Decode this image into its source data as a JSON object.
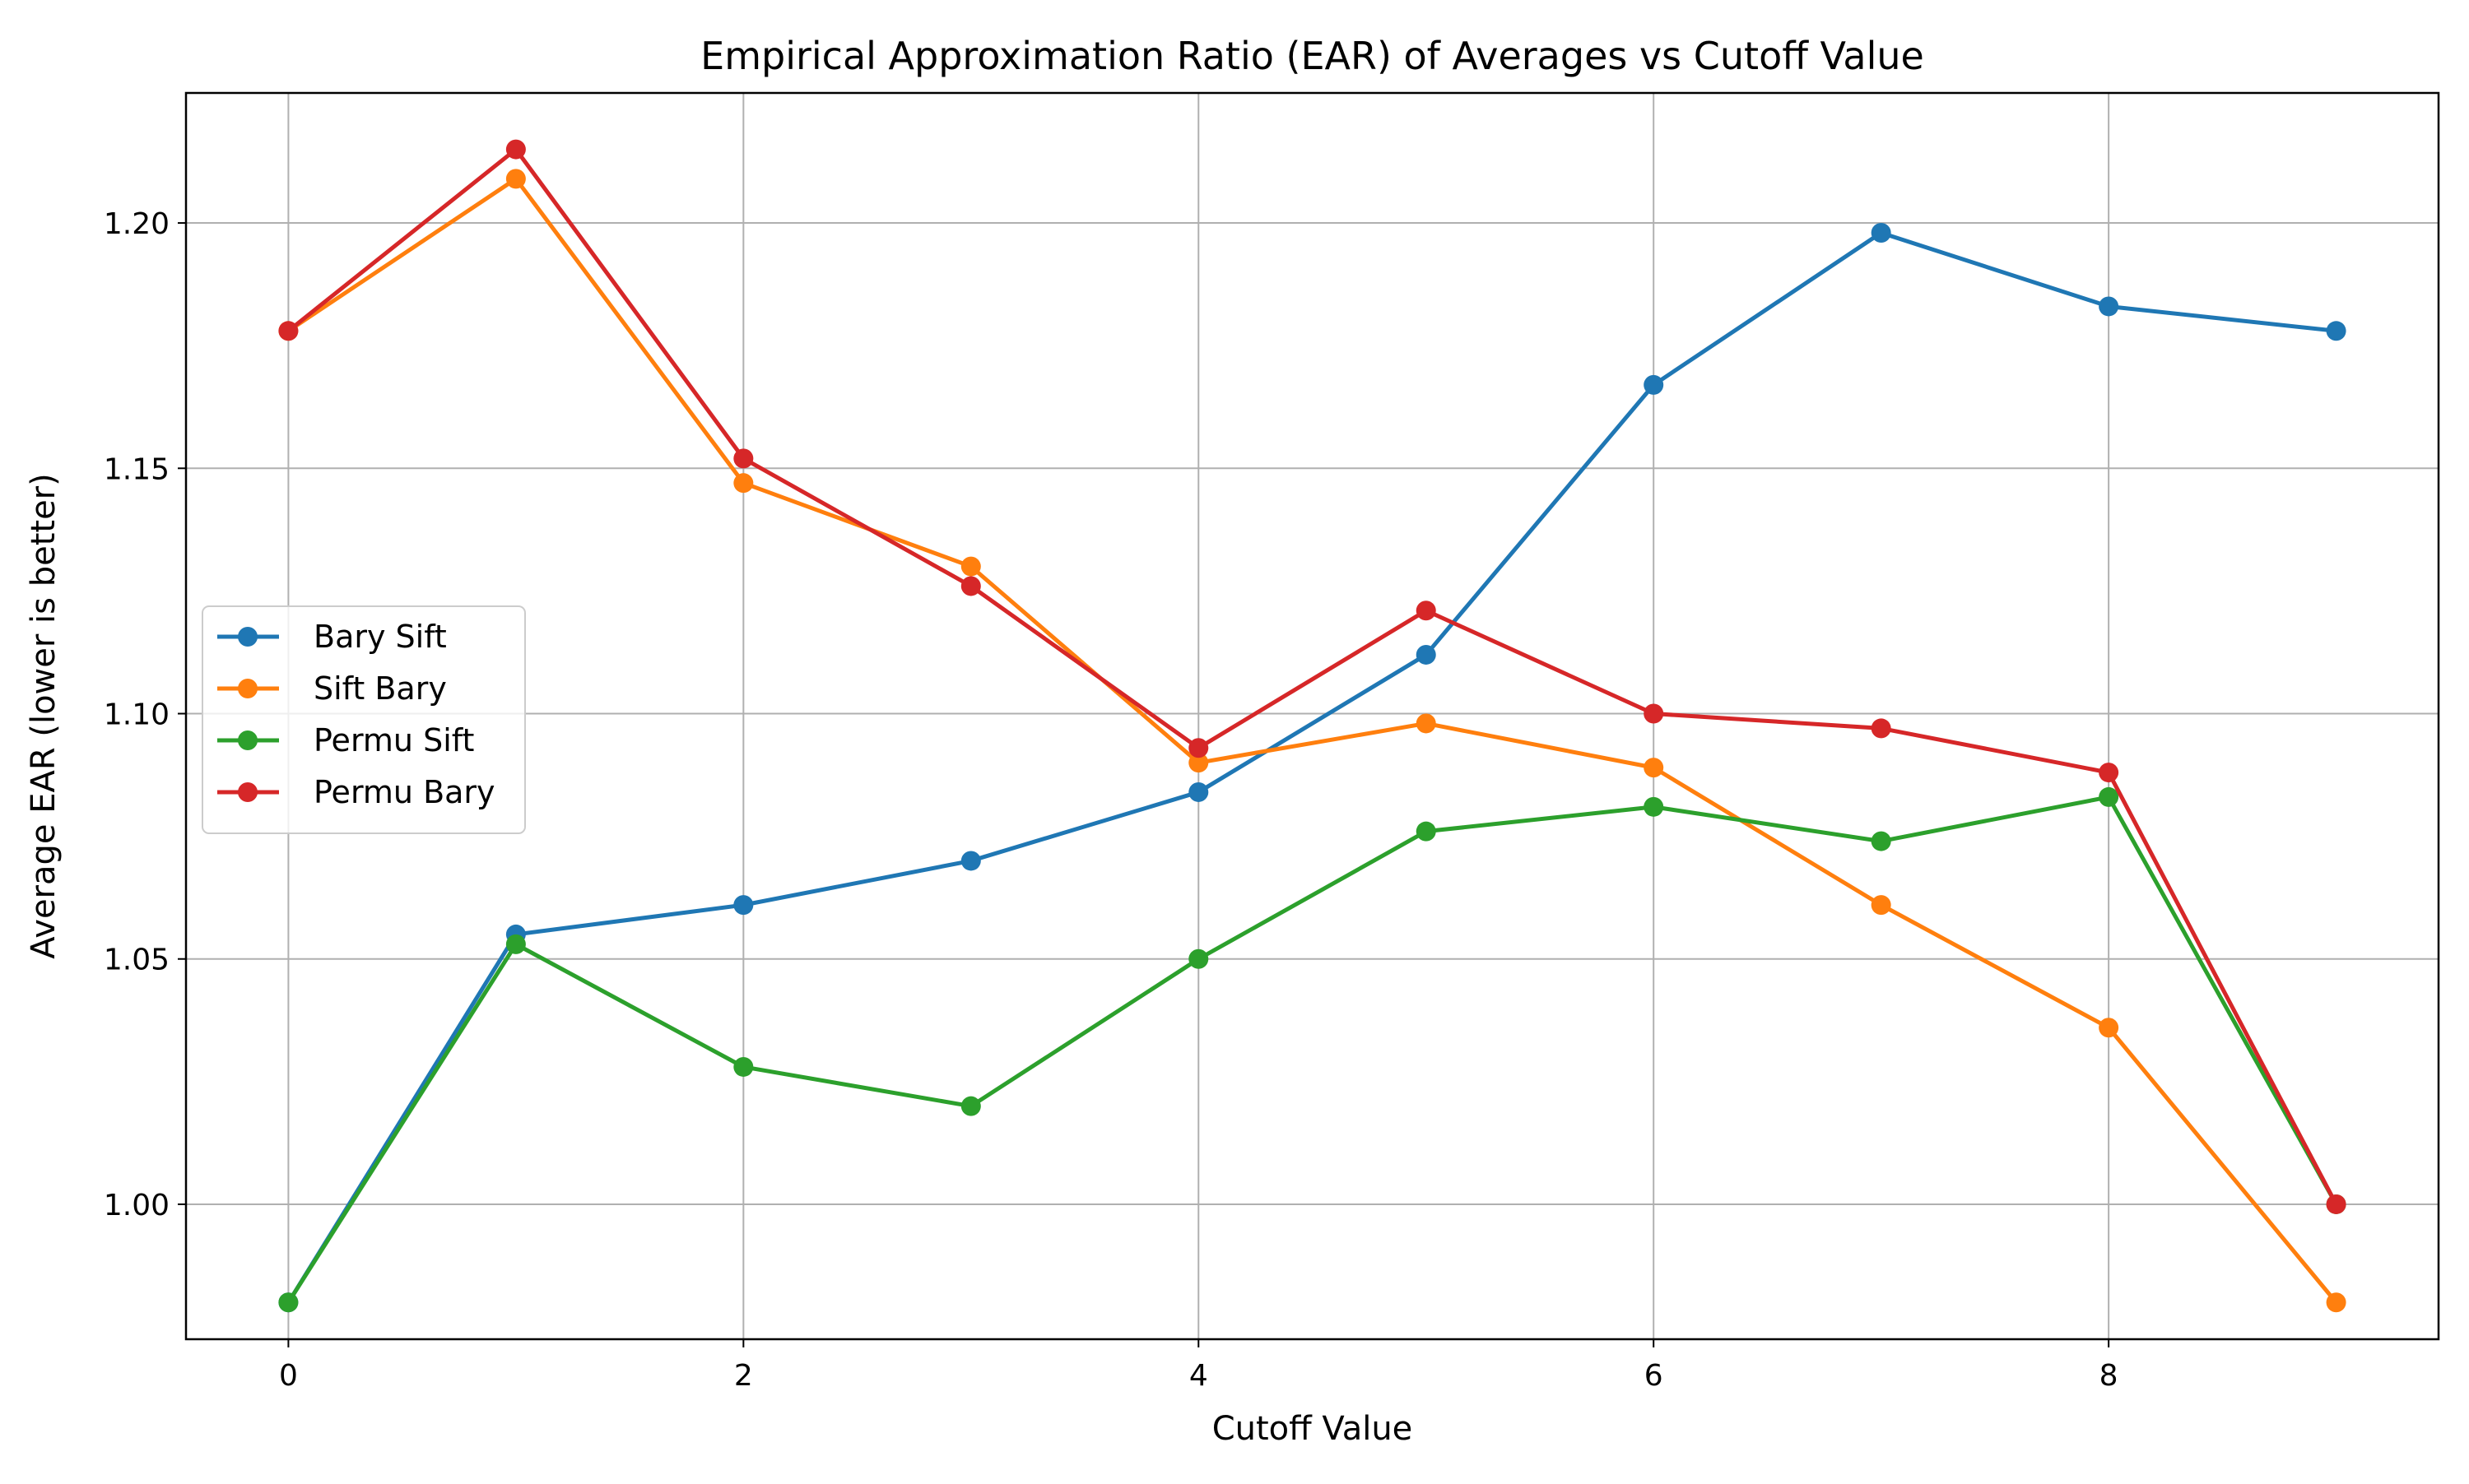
{
  "chart_data": {
    "type": "line",
    "title": "Empirical Approximation Ratio (EAR) of Averages vs Cutoff Value",
    "xlabel": "Cutoff Value",
    "ylabel": "Average EAR (lower is better)",
    "x": [
      0,
      1,
      2,
      3,
      4,
      5,
      6,
      7,
      8,
      9
    ],
    "xlim": [
      -0.45,
      9.45
    ],
    "ylim": [
      0.9725,
      1.2265
    ],
    "xticks": [
      0,
      2,
      4,
      6,
      8
    ],
    "xtick_labels": [
      "0",
      "2",
      "4",
      "6",
      "8"
    ],
    "yticks": [
      1.0,
      1.05,
      1.1,
      1.15,
      1.2
    ],
    "ytick_labels": [
      "1.00",
      "1.05",
      "1.10",
      "1.15",
      "1.20"
    ],
    "grid": true,
    "legend_position": "center-left",
    "series": [
      {
        "name": "Bary Sift",
        "color": "#1f77b4",
        "values": [
          0.98,
          1.055,
          1.061,
          1.07,
          1.084,
          1.112,
          1.167,
          1.198,
          1.183,
          1.178
        ]
      },
      {
        "name": "Sift Bary",
        "color": "#ff7f0e",
        "values": [
          1.178,
          1.209,
          1.147,
          1.13,
          1.09,
          1.098,
          1.089,
          1.061,
          1.036,
          0.98
        ]
      },
      {
        "name": "Permu Sift",
        "color": "#2ca02c",
        "values": [
          0.98,
          1.053,
          1.028,
          1.02,
          1.05,
          1.076,
          1.081,
          1.074,
          1.083,
          1.0
        ]
      },
      {
        "name": "Permu Bary",
        "color": "#d62728",
        "values": [
          1.178,
          1.215,
          1.152,
          1.126,
          1.093,
          1.121,
          1.1,
          1.097,
          1.088,
          1.0
        ]
      }
    ]
  }
}
